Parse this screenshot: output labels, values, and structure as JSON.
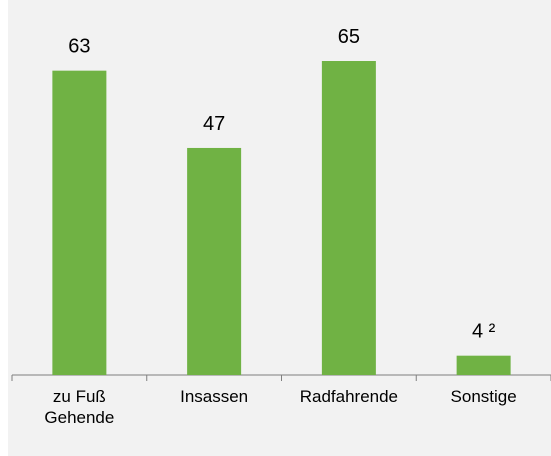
{
  "chart_data": {
    "type": "bar",
    "categories": [
      "zu Fuß Gehende",
      "Insassen",
      "Radfahrende",
      "Sonstige"
    ],
    "values": [
      63,
      47,
      65,
      4
    ],
    "value_labels": [
      "63",
      "47",
      "65",
      "4 ²"
    ],
    "color": "#70b244"
  }
}
